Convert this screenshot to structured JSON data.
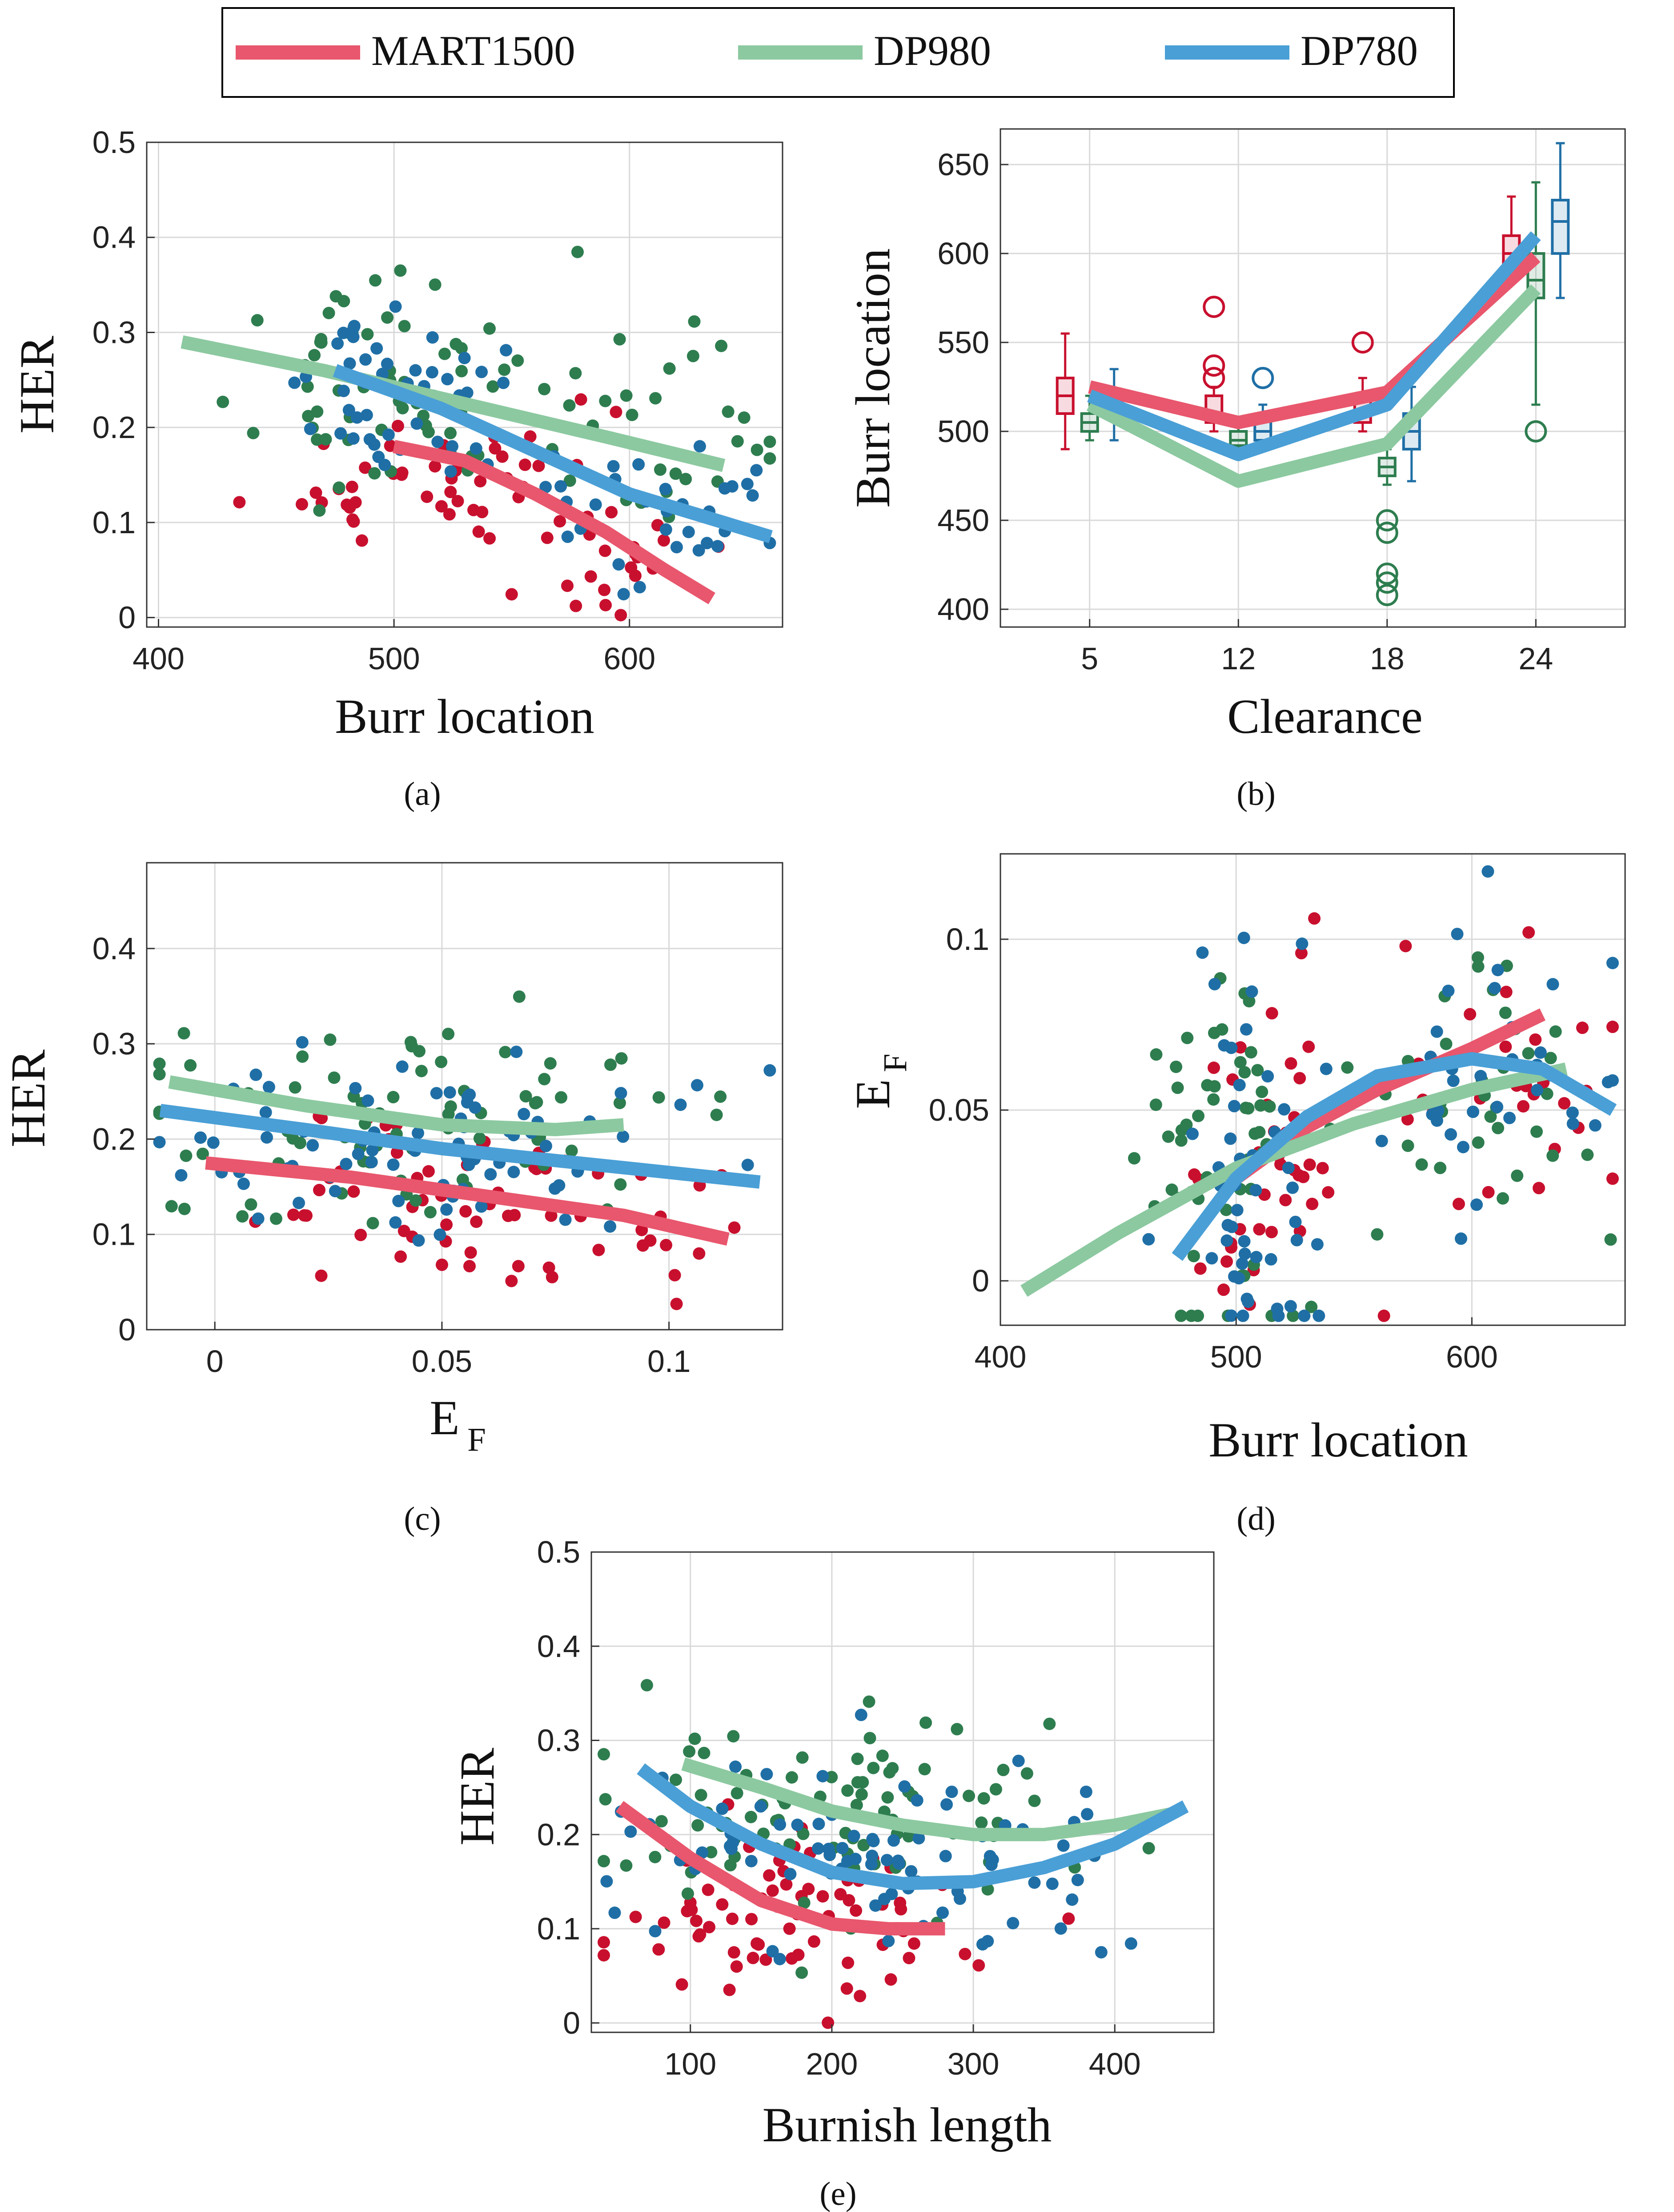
{
  "colors": {
    "mart1500_line": "#e8576d",
    "mart1500_point": "#c8102e",
    "dp980_line": "#8cc9a0",
    "dp980_point": "#2e7d4f",
    "dp780_line": "#4a9fd6",
    "dp780_point": "#1f6fa6",
    "grid": "#d9d9d9"
  },
  "legend": {
    "items": [
      {
        "label": "MART1500",
        "color": "#e8576d"
      },
      {
        "label": "DP980",
        "color": "#8cc9a0"
      },
      {
        "label": "DP780",
        "color": "#4a9fd6"
      }
    ]
  },
  "chart_data": [
    {
      "id": "a",
      "type": "scatter",
      "caption": "(a)",
      "xlabel": "Burr location",
      "ylabel": "HER",
      "xlim": [
        395,
        665
      ],
      "ylim": [
        -0.01,
        0.5
      ],
      "xticks": [
        400,
        500,
        600
      ],
      "yticks": [
        0,
        0.1,
        0.2,
        0.3,
        0.4,
        0.5
      ],
      "series": [
        {
          "name": "MART1500",
          "seed": 11,
          "n": 70,
          "clusters": [
            [
              510,
              0.15,
              30,
              0.04,
              0.6
            ],
            [
              590,
              0.08,
              20,
              0.05,
              0.4
            ]
          ],
          "fit": [
            [
              500,
              0.18
            ],
            [
              530,
              0.165
            ],
            [
              560,
              0.13
            ],
            [
              590,
              0.09
            ],
            [
              615,
              0.05
            ],
            [
              635,
              0.02
            ]
          ]
        },
        {
          "name": "DP980",
          "seed": 23,
          "n": 90,
          "clusters": [
            [
              495,
              0.24,
              25,
              0.05,
              0.6
            ],
            [
              580,
              0.2,
              45,
              0.06,
              0.4
            ]
          ],
          "fit": [
            [
              410,
              0.29
            ],
            [
              470,
              0.26
            ],
            [
              530,
              0.225
            ],
            [
              590,
              0.19
            ],
            [
              640,
              0.16
            ]
          ]
        },
        {
          "name": "DP780",
          "seed": 37,
          "n": 85,
          "clusters": [
            [
              505,
              0.23,
              20,
              0.04,
              0.6
            ],
            [
              620,
              0.12,
              30,
              0.04,
              0.4
            ]
          ],
          "fit": [
            [
              475,
              0.26
            ],
            [
              520,
              0.22
            ],
            [
              560,
              0.175
            ],
            [
              600,
              0.13
            ],
            [
              640,
              0.1
            ],
            [
              660,
              0.085
            ]
          ]
        }
      ]
    },
    {
      "id": "b",
      "type": "box",
      "caption": "(b)",
      "xlabel": "Clearance",
      "ylabel": "Burr location",
      "categories": [
        "5",
        "12",
        "18",
        "24"
      ],
      "ylim": [
        390,
        670
      ],
      "yticks": [
        400,
        450,
        500,
        550,
        600,
        650
      ],
      "series": [
        {
          "name": "MART1500",
          "boxes": [
            {
              "q1": 510,
              "median": 520,
              "q3": 530,
              "min": 490,
              "max": 555,
              "outliers": []
            },
            {
              "q1": 505,
              "median": 510,
              "q3": 520,
              "min": 500,
              "max": 525,
              "outliers": [
                570,
                537,
                530
              ]
            },
            {
              "q1": 505,
              "median": 510,
              "q3": 520,
              "min": 500,
              "max": 530,
              "outliers": [
                550
              ]
            },
            {
              "q1": 595,
              "median": 600,
              "q3": 610,
              "min": 585,
              "max": 632,
              "outliers": []
            }
          ],
          "line": [
            525,
            505,
            522,
            598
          ]
        },
        {
          "name": "DP980",
          "boxes": [
            {
              "q1": 500,
              "median": 505,
              "q3": 510,
              "min": 495,
              "max": 520,
              "outliers": []
            },
            {
              "q1": 492,
              "median": 495,
              "q3": 500,
              "min": 488,
              "max": 505,
              "outliers": []
            },
            {
              "q1": 475,
              "median": 480,
              "q3": 485,
              "min": 470,
              "max": 490,
              "outliers": [
                450,
                443,
                420,
                415,
                408
              ]
            },
            {
              "q1": 575,
              "median": 585,
              "q3": 600,
              "min": 515,
              "max": 640,
              "outliers": [
                500
              ]
            }
          ],
          "line": [
            515,
            472,
            493,
            580
          ]
        },
        {
          "name": "DP780",
          "boxes": [
            {
              "q1": 510,
              "median": 515,
              "q3": 520,
              "min": 495,
              "max": 535,
              "outliers": []
            },
            {
              "q1": 495,
              "median": 500,
              "q3": 507,
              "min": 490,
              "max": 515,
              "outliers": [
                530
              ]
            },
            {
              "q1": 490,
              "median": 500,
              "q3": 510,
              "min": 472,
              "max": 525,
              "outliers": []
            },
            {
              "q1": 600,
              "median": 618,
              "q3": 630,
              "min": 575,
              "max": 662,
              "outliers": []
            }
          ],
          "line": [
            520,
            487,
            515,
            610
          ]
        }
      ]
    },
    {
      "id": "c",
      "type": "scatter",
      "caption": "(c)",
      "xlabel": "E",
      "xlabel_sub": "F",
      "ylabel": "HER",
      "xlim": [
        -0.015,
        0.125
      ],
      "ylim": [
        0,
        0.49
      ],
      "xticks": [
        0,
        0.05,
        0.1
      ],
      "yticks": [
        0,
        0.1,
        0.2,
        0.3,
        0.4
      ],
      "series": [
        {
          "name": "MART1500",
          "seed": 51,
          "n": 70,
          "clusters": [
            [
              0.055,
              0.13,
              0.03,
              0.05,
              1.0
            ]
          ],
          "fit": [
            [
              -0.002,
              0.175
            ],
            [
              0.03,
              0.16
            ],
            [
              0.06,
              0.14
            ],
            [
              0.09,
              0.12
            ],
            [
              0.113,
              0.095
            ]
          ]
        },
        {
          "name": "DP980",
          "seed": 63,
          "n": 80,
          "clusters": [
            [
              0.04,
              0.22,
              0.03,
              0.06,
              1.0
            ]
          ],
          "fit": [
            [
              -0.01,
              0.26
            ],
            [
              0.02,
              0.235
            ],
            [
              0.05,
              0.215
            ],
            [
              0.075,
              0.21
            ],
            [
              0.09,
              0.215
            ]
          ]
        },
        {
          "name": "DP780",
          "seed": 77,
          "n": 80,
          "clusters": [
            [
              0.045,
              0.19,
              0.035,
              0.05,
              1.0
            ]
          ],
          "fit": [
            [
              -0.012,
              0.23
            ],
            [
              0.02,
              0.21
            ],
            [
              0.05,
              0.19
            ],
            [
              0.08,
              0.175
            ],
            [
              0.12,
              0.155
            ]
          ]
        }
      ]
    },
    {
      "id": "d",
      "type": "scatter",
      "caption": "(d)",
      "xlabel": "Burr location",
      "ylabel": "E",
      "ylabel_sub": "F",
      "xlim": [
        400,
        665
      ],
      "ylim": [
        -0.013,
        0.125
      ],
      "xticks": [
        400,
        500,
        600
      ],
      "yticks": [
        0,
        0.05,
        0.1
      ],
      "series": [
        {
          "name": "MART1500",
          "seed": 81,
          "n": 70,
          "clusters": [
            [
              515,
              0.035,
              15,
              0.03,
              0.6
            ],
            [
              610,
              0.06,
              25,
              0.025,
              0.4
            ]
          ],
          "fit": [
            [
              500,
              0.03
            ],
            [
              530,
              0.045
            ],
            [
              560,
              0.056
            ],
            [
              600,
              0.068
            ],
            [
              630,
              0.078
            ]
          ]
        },
        {
          "name": "DP980",
          "seed": 93,
          "n": 90,
          "clusters": [
            [
              495,
              0.03,
              20,
              0.03,
              0.6
            ],
            [
              610,
              0.055,
              30,
              0.02,
              0.4
            ]
          ],
          "fit": [
            [
              410,
              -0.003
            ],
            [
              450,
              0.014
            ],
            [
              500,
              0.033
            ],
            [
              550,
              0.046
            ],
            [
              600,
              0.056
            ],
            [
              640,
              0.062
            ]
          ]
        },
        {
          "name": "DP780",
          "seed": 107,
          "n": 85,
          "clusters": [
            [
              505,
              0.03,
              15,
              0.03,
              0.6
            ],
            [
              615,
              0.06,
              30,
              0.02,
              0.4
            ]
          ],
          "fit": [
            [
              475,
              0.007
            ],
            [
              500,
              0.03
            ],
            [
              530,
              0.048
            ],
            [
              560,
              0.06
            ],
            [
              600,
              0.065
            ],
            [
              630,
              0.062
            ],
            [
              660,
              0.05
            ]
          ]
        }
      ]
    },
    {
      "id": "e",
      "type": "scatter",
      "caption": "(e)",
      "xlabel": "Burnish length",
      "ylabel": "HER",
      "xlim": [
        30,
        470
      ],
      "ylim": [
        -0.01,
        0.5
      ],
      "xticks": [
        100,
        200,
        300,
        400
      ],
      "yticks": [
        0,
        0.1,
        0.2,
        0.3,
        0.4,
        0.5
      ],
      "series": [
        {
          "name": "MART1500",
          "seed": 121,
          "n": 75,
          "clusters": [
            [
              170,
              0.12,
              60,
              0.05,
              1.0
            ]
          ],
          "fit": [
            [
              50,
              0.23
            ],
            [
              100,
              0.175
            ],
            [
              150,
              0.13
            ],
            [
              200,
              0.105
            ],
            [
              240,
              0.1
            ],
            [
              280,
              0.1
            ]
          ]
        },
        {
          "name": "DP980",
          "seed": 133,
          "n": 90,
          "clusters": [
            [
              200,
              0.23,
              90,
              0.05,
              1.0
            ]
          ],
          "fit": [
            [
              95,
              0.275
            ],
            [
              150,
              0.25
            ],
            [
              200,
              0.225
            ],
            [
              250,
              0.21
            ],
            [
              300,
              0.2
            ],
            [
              350,
              0.2
            ],
            [
              400,
              0.21
            ],
            [
              440,
              0.222
            ]
          ]
        },
        {
          "name": "DP780",
          "seed": 147,
          "n": 85,
          "clusters": [
            [
              230,
              0.18,
              90,
              0.05,
              1.0
            ]
          ],
          "fit": [
            [
              65,
              0.27
            ],
            [
              100,
              0.23
            ],
            [
              150,
              0.19
            ],
            [
              200,
              0.16
            ],
            [
              250,
              0.148
            ],
            [
              300,
              0.15
            ],
            [
              350,
              0.165
            ],
            [
              400,
              0.19
            ],
            [
              450,
              0.23
            ]
          ]
        }
      ]
    }
  ]
}
